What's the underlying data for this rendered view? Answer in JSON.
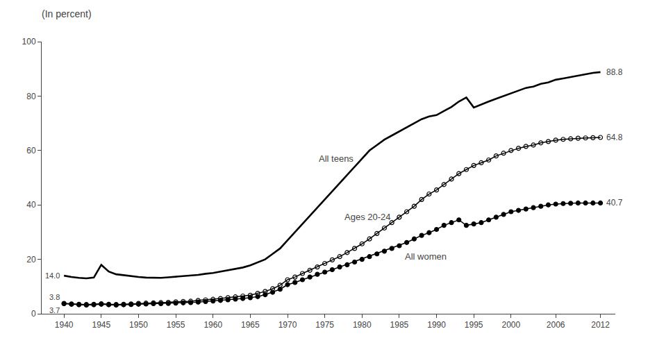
{
  "chart_data": {
    "type": "line",
    "title": "(In percent)",
    "x": [
      1940,
      1941,
      1942,
      1943,
      1944,
      1945,
      1946,
      1947,
      1948,
      1949,
      1950,
      1951,
      1952,
      1953,
      1954,
      1955,
      1956,
      1957,
      1958,
      1959,
      1960,
      1961,
      1962,
      1963,
      1964,
      1965,
      1966,
      1967,
      1968,
      1969,
      1970,
      1971,
      1972,
      1973,
      1974,
      1975,
      1976,
      1977,
      1978,
      1979,
      1980,
      1981,
      1982,
      1983,
      1984,
      1985,
      1986,
      1987,
      1988,
      1989,
      1990,
      1991,
      1992,
      1993,
      1994,
      1995,
      1996,
      1997,
      1998,
      1999,
      2000,
      2001,
      2002,
      2003,
      2004,
      2005,
      2006,
      2007,
      2008,
      2009,
      2010,
      2011,
      2012
    ],
    "series": [
      {
        "name": "All teens",
        "color": "#000000",
        "marker": "none",
        "values": [
          14.0,
          13.5,
          13.2,
          13.0,
          13.3,
          18.0,
          15.5,
          14.5,
          14.2,
          13.8,
          13.5,
          13.3,
          13.2,
          13.2,
          13.4,
          13.6,
          13.8,
          14.0,
          14.3,
          14.7,
          15.0,
          15.5,
          16.0,
          16.5,
          17.0,
          17.8,
          18.8,
          20.0,
          22.0,
          24.0,
          27.0,
          30.0,
          33.0,
          36.0,
          39.0,
          42.0,
          45.0,
          48.0,
          51.0,
          54.0,
          57.0,
          60.0,
          62.0,
          64.0,
          65.5,
          67.0,
          68.5,
          70.0,
          71.5,
          72.5,
          73.0,
          74.5,
          76.0,
          78.0,
          79.5,
          75.8,
          77.0,
          78.0,
          79.0,
          80.0,
          81.0,
          82.0,
          83.0,
          83.5,
          84.5,
          85.0,
          86.0,
          86.5,
          87.0,
          87.5,
          87.9,
          88.5,
          88.8
        ]
      },
      {
        "name": "Ages 20-24",
        "color": "#000000",
        "marker": "open circle",
        "values": [
          3.8,
          3.6,
          3.5,
          3.4,
          3.5,
          3.7,
          3.5,
          3.4,
          3.5,
          3.6,
          3.8,
          3.9,
          4.0,
          4.1,
          4.2,
          4.4,
          4.5,
          4.6,
          4.9,
          5.1,
          5.3,
          5.6,
          5.9,
          6.2,
          6.5,
          6.8,
          7.5,
          8.2,
          9.2,
          10.5,
          12.5,
          13.5,
          14.8,
          16.0,
          17.2,
          18.5,
          19.8,
          21.0,
          22.5,
          24.0,
          25.7,
          27.5,
          29.5,
          31.5,
          33.5,
          35.5,
          37.5,
          39.5,
          42.0,
          44.0,
          45.5,
          47.5,
          49.5,
          51.5,
          53.0,
          54.5,
          55.5,
          56.5,
          58.0,
          59.0,
          60.0,
          60.8,
          61.5,
          62.0,
          62.8,
          63.3,
          63.8,
          64.1,
          64.3,
          64.5,
          64.6,
          64.7,
          64.8
        ]
      },
      {
        "name": "All women",
        "color": "#000000",
        "marker": "circle",
        "values": [
          3.7,
          3.5,
          3.3,
          3.2,
          3.3,
          3.5,
          3.3,
          3.2,
          3.3,
          3.4,
          3.5,
          3.6,
          3.7,
          3.7,
          3.8,
          3.9,
          4.0,
          4.1,
          4.3,
          4.5,
          4.7,
          4.9,
          5.1,
          5.4,
          5.6,
          5.9,
          6.3,
          7.0,
          7.9,
          9.0,
          10.7,
          11.5,
          12.5,
          13.5,
          14.5,
          15.3,
          16.2,
          17.2,
          18.0,
          19.0,
          20.0,
          21.0,
          22.0,
          23.0,
          24.0,
          25.0,
          26.2,
          27.5,
          28.8,
          29.8,
          31.0,
          32.5,
          33.5,
          34.5,
          32.5,
          33.0,
          33.5,
          34.5,
          35.5,
          36.5,
          37.5,
          38.0,
          38.5,
          39.0,
          39.5,
          40.0,
          40.3,
          40.5,
          40.6,
          40.7,
          40.7,
          40.7,
          40.7
        ]
      }
    ],
    "annotations": [
      {
        "x": 2012,
        "y": 88.8,
        "text": "88.8"
      },
      {
        "x": 2012,
        "y": 64.8,
        "text": "64.8"
      },
      {
        "x": 2012,
        "y": 40.7,
        "text": "40.7"
      },
      {
        "x": 1940,
        "y": 14.0,
        "text": "14.0"
      },
      {
        "x": 1940,
        "y": 3.8,
        "text": "3.8"
      },
      {
        "x": 1940,
        "y": 3.7,
        "text": "3.7"
      }
    ],
    "xlim": [
      1937,
      2014
    ],
    "ylim": [
      0,
      100
    ],
    "xticks": [
      1940,
      1945,
      1950,
      1955,
      1960,
      1965,
      1970,
      1975,
      1980,
      1985,
      1990,
      1995,
      2000,
      2006,
      2012
    ],
    "yticks": [
      0,
      20,
      40,
      60,
      80,
      100
    ],
    "grid": false
  }
}
